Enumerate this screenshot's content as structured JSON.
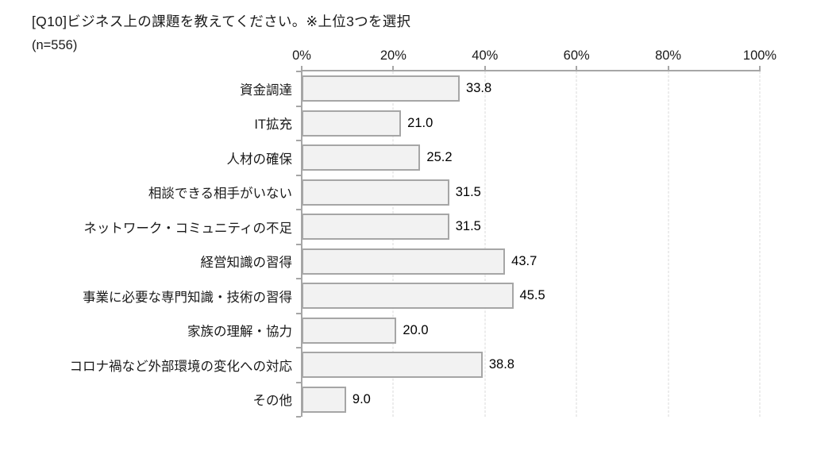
{
  "page": {
    "background": "#ffffff"
  },
  "header": {
    "title": "[Q10]ビジネス上の課題を教えてください。※上位3つを選択",
    "sample_label": "(n=556)"
  },
  "chart_data": {
    "type": "bar",
    "orientation": "horizontal",
    "title": "[Q10]ビジネス上の課題を教えてください。※上位3つを選択",
    "subtitle": "(n=556)",
    "categories": [
      "資金調達",
      "IT拡充",
      "人材の確保",
      "相談できる相手がいない",
      "ネットワーク・コミュニティの不足",
      "経営知識の習得",
      "事業に必要な専門知識・技術の習得",
      "家族の理解・協力",
      "コロナ禍など外部環境の変化への対応",
      "その他"
    ],
    "values": [
      33.8,
      21.0,
      25.2,
      31.5,
      31.5,
      43.7,
      45.5,
      20.0,
      38.8,
      9.0
    ],
    "value_labels": [
      "33.8",
      "21.0",
      "25.2",
      "31.5",
      "31.5",
      "43.7",
      "45.5",
      "20.0",
      "38.8",
      "9.0"
    ],
    "x_ticks": [
      "0%",
      "20%",
      "40%",
      "60%",
      "80%",
      "100%"
    ],
    "x_tick_values": [
      0,
      20,
      40,
      60,
      80,
      100
    ],
    "xlim": [
      0,
      100
    ],
    "xlabel": "",
    "ylabel": "",
    "legend": "none",
    "grid": "vertical-dashed",
    "axis_position": "top",
    "colors": {
      "bar_fill": "#f2f2f2",
      "bar_border": "#a6a6a6",
      "axis": "#a6a6a6",
      "gridline": "#d9d9d9",
      "text": "#1a1a1a",
      "background": "#ffffff"
    }
  }
}
